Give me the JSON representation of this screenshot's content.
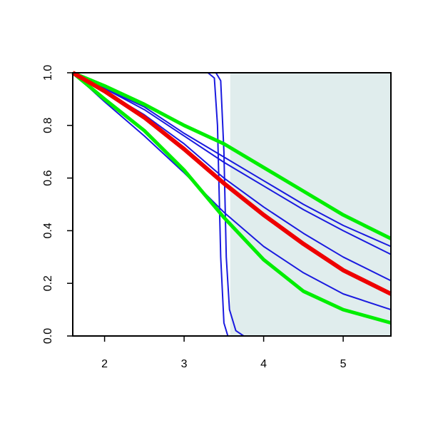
{
  "chart_data": {
    "type": "line",
    "xlim": [
      1.6,
      5.6
    ],
    "ylim": [
      0,
      1
    ],
    "xticks": [
      2,
      3,
      4,
      5
    ],
    "yticks": [
      {
        "value": 0,
        "label": "0.0"
      },
      0.2,
      0.4,
      0.6,
      0.8,
      {
        "value": 1,
        "label": "1.0"
      }
    ],
    "shaded_region": {
      "x": [
        3.58,
        5.6
      ],
      "color": "#e0eded"
    },
    "series": [
      {
        "color": "#1a1adf",
        "x": [
          1.6,
          2.0,
          2.5,
          3.0,
          3.5,
          4.0,
          4.5,
          5.0,
          5.6
        ],
        "values": [
          1,
          0.89,
          0.76,
          0.62,
          0.47,
          0.34,
          0.24,
          0.16,
          0.1
        ]
      },
      {
        "color": "#1a1adf",
        "x": [
          1.6,
          2.0,
          2.5,
          3.0,
          3.5,
          4.0,
          4.5,
          5.0,
          5.6
        ],
        "values": [
          1,
          0.94,
          0.86,
          0.76,
          0.66,
          0.57,
          0.48,
          0.4,
          0.31
        ]
      },
      {
        "color": "#1a1adf",
        "x": [
          1.6,
          2.0,
          2.5,
          3.0,
          3.5,
          4.0,
          4.5,
          5.0,
          5.6
        ],
        "values": [
          1,
          0.94,
          0.87,
          0.77,
          0.68,
          0.59,
          0.5,
          0.42,
          0.34
        ]
      },
      {
        "color": "#1a1adf",
        "x": [
          1.6,
          2.0,
          2.5,
          3.0,
          3.5,
          4.0,
          4.5,
          5.0,
          5.6
        ],
        "values": [
          1,
          0.93,
          0.84,
          0.73,
          0.6,
          0.49,
          0.39,
          0.3,
          0.21
        ]
      },
      {
        "color": "#1a1adf",
        "x": [
          1.6,
          3.3,
          3.38,
          3.42,
          3.46,
          3.5,
          3.55,
          5.6
        ],
        "values": [
          1,
          1,
          0.98,
          0.8,
          0.3,
          0.05,
          0,
          0
        ]
      },
      {
        "color": "#1a1adf",
        "x": [
          1.6,
          3.4,
          3.46,
          3.5,
          3.53,
          3.57,
          3.65,
          3.75,
          5.6
        ],
        "values": [
          1,
          1,
          0.97,
          0.7,
          0.3,
          0.1,
          0.02,
          0,
          0
        ]
      },
      {
        "color": "#00ee00",
        "x": [
          1.6,
          2.0,
          2.5,
          3.0,
          3.5,
          4.0,
          4.5,
          5.0,
          5.6
        ],
        "values": [
          1,
          0.95,
          0.88,
          0.8,
          0.73,
          0.64,
          0.55,
          0.46,
          0.37
        ]
      },
      {
        "color": "#00ee00",
        "x": [
          1.6,
          2.0,
          2.5,
          3.0,
          3.5,
          4.0,
          4.5,
          5.0,
          5.6
        ],
        "values": [
          1,
          0.9,
          0.78,
          0.63,
          0.45,
          0.29,
          0.17,
          0.1,
          0.05
        ]
      },
      {
        "color": "#ee0000",
        "x": [
          1.6,
          2.0,
          2.5,
          3.0,
          3.5,
          4.0,
          4.5,
          5.0,
          5.6
        ],
        "values": [
          1,
          0.93,
          0.83,
          0.71,
          0.58,
          0.46,
          0.35,
          0.25,
          0.16
        ]
      }
    ]
  }
}
